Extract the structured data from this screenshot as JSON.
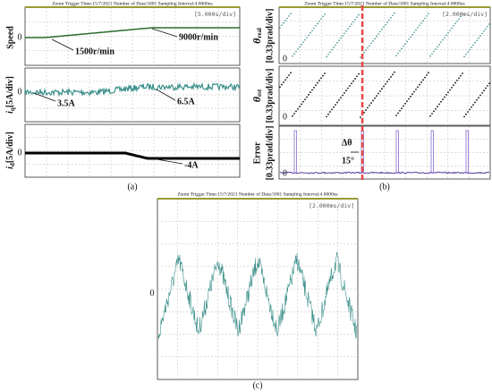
{
  "panels": [
    {
      "header": "Zoom Trigger Time:15/7/2021    Number of Data:5001   Sampling Interval:4.0000us",
      "timebase": "[5.000s/div]",
      "zero": "0",
      "labels": [
        "Speed",
        {
          "var": "i",
          "sub": "q",
          "unit": "[5A/div]"
        },
        {
          "var": "i",
          "sub": "d",
          "unit": "[5A/div]"
        }
      ],
      "annotations": [
        "1500r/min",
        "9000r/min",
        "3.5A",
        "6.5A",
        "-4A"
      ],
      "caption": "(a)"
    },
    {
      "header": "Zoom Trigger Time:15/7/2021    Number of Data:5001   Sampling Interval:4.0000us",
      "timebase": "[2.000ms/div]",
      "zero": "0",
      "labels": [
        {
          "var": "θ",
          "sub": "real",
          "unit": "[0.33prad/div]"
        },
        {
          "var": "θ",
          "sub": "est",
          "unit": "[0.33prad/div]"
        },
        {
          "var": "Error",
          "unit": "[0.33prad/div]"
        }
      ],
      "annotations": [
        "Δθ",
        "15°"
      ],
      "caption": "(b)"
    },
    {
      "header": "Zoom Trigger Time:15/7/2021    Number of Data:5001   Sampling Interval:4.0000us",
      "timebase": "[2.000ms/div]",
      "zero": "0",
      "caption": "(c)"
    }
  ]
}
